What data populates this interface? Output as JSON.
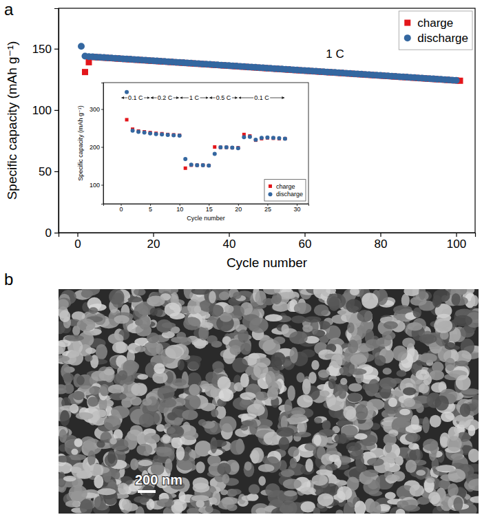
{
  "chart_data": [
    {
      "type": "scatter",
      "panel_label": "a",
      "x_label": "Cycle number",
      "y_label": "Specific capacity (mAh g⁻¹)",
      "x": [
        1,
        2,
        3,
        4,
        5,
        6,
        7,
        8,
        9,
        10,
        11,
        12,
        13,
        14,
        15,
        16,
        17,
        18,
        19,
        20,
        21,
        22,
        23,
        24,
        25,
        26,
        27,
        28,
        29,
        30,
        31,
        32,
        33,
        34,
        35,
        36,
        37,
        38,
        39,
        40,
        41,
        42,
        43,
        44,
        45,
        46,
        47,
        48,
        49,
        50,
        51,
        52,
        53,
        54,
        55,
        56,
        57,
        58,
        59,
        60,
        61,
        62,
        63,
        64,
        65,
        66,
        67,
        68,
        69,
        70,
        71,
        72,
        73,
        74,
        75,
        76,
        77,
        78,
        79,
        80,
        81,
        82,
        83,
        84,
        85,
        86,
        87,
        88,
        89,
        90,
        91,
        92,
        93,
        94,
        95,
        96,
        97,
        98,
        99,
        100,
        101
      ],
      "series": [
        {
          "name": "charge",
          "color": "#e3161b",
          "marker": "square",
          "values": [
            null,
            131,
            139,
            143.3,
            143.1,
            142.9,
            142.7,
            142.5,
            142.3,
            142.1,
            141.9,
            141.7,
            141.5,
            141.3,
            141.1,
            140.9,
            140.7,
            140.5,
            140.3,
            140.1,
            139.9,
            139.7,
            139.5,
            139.3,
            139.1,
            138.9,
            138.7,
            138.5,
            138.3,
            138.1,
            137.9,
            137.7,
            137.5,
            137.3,
            137.1,
            136.9,
            136.7,
            136.5,
            136.3,
            136.1,
            135.9,
            135.7,
            135.5,
            135.3,
            135.1,
            134.9,
            134.7,
            134.5,
            134.3,
            134.1,
            133.9,
            133.7,
            133.5,
            133.3,
            133.1,
            132.9,
            132.7,
            132.5,
            132.3,
            132.1,
            131.9,
            131.7,
            131.5,
            131.3,
            131.1,
            130.9,
            130.7,
            130.5,
            130.3,
            130.1,
            129.9,
            129.7,
            129.5,
            129.3,
            129.1,
            128.9,
            128.7,
            128.5,
            128.3,
            128.1,
            127.9,
            127.7,
            127.5,
            127.3,
            127.1,
            126.9,
            126.7,
            126.5,
            126.3,
            126.1,
            125.9,
            125.7,
            125.5,
            125.3,
            125.1,
            124.9,
            124.7,
            124.5,
            124.3,
            124.1,
            123.9
          ]
        },
        {
          "name": "discharge",
          "color": "#3467a0",
          "marker": "circle",
          "values": [
            152,
            144,
            143.6,
            143.4,
            143.2,
            143.0,
            142.8,
            142.6,
            142.4,
            142.2,
            142.0,
            141.8,
            141.6,
            141.4,
            141.2,
            141.0,
            140.8,
            140.6,
            140.4,
            140.2,
            140.0,
            139.8,
            139.6,
            139.4,
            139.2,
            139.0,
            138.8,
            138.6,
            138.4,
            138.2,
            138.0,
            137.8,
            137.6,
            137.4,
            137.2,
            137.0,
            136.8,
            136.6,
            136.4,
            136.2,
            136.0,
            135.8,
            135.6,
            135.4,
            135.2,
            135.0,
            134.8,
            134.6,
            134.4,
            134.2,
            134.0,
            133.8,
            133.6,
            133.4,
            133.2,
            133.0,
            132.8,
            132.6,
            132.4,
            132.2,
            132.0,
            131.8,
            131.6,
            131.4,
            131.2,
            131.0,
            130.8,
            130.6,
            130.4,
            130.2,
            130.0,
            129.8,
            129.6,
            129.4,
            129.2,
            129.0,
            128.8,
            128.6,
            128.4,
            128.2,
            128.0,
            127.8,
            127.6,
            127.4,
            127.2,
            127.0,
            126.8,
            126.6,
            126.4,
            126.2,
            126.0,
            125.8,
            125.6,
            125.4,
            125.2,
            125.0,
            124.8,
            124.6,
            124.4,
            124.2,
            null
          ]
        }
      ],
      "xlim": [
        -5,
        105
      ],
      "ylim": [
        0,
        183
      ],
      "xticks": [
        0,
        20,
        40,
        60,
        80,
        100
      ],
      "yticks": [
        0,
        50,
        100,
        150
      ],
      "legend": "upper right",
      "annotations": [
        {
          "text": "1 C",
          "x": 68,
          "y": 146
        }
      ]
    },
    {
      "type": "scatter",
      "x_label": "Cycle number",
      "y_label": "Specific capacity (mAh g⁻¹)",
      "x": [
        1,
        2,
        3,
        4,
        5,
        6,
        7,
        8,
        9,
        10,
        11,
        12,
        13,
        14,
        15,
        16,
        17,
        18,
        19,
        20,
        21,
        22,
        23,
        24,
        25,
        26,
        27,
        28
      ],
      "series": [
        {
          "name": "charge",
          "color": "#e3161b",
          "marker": "square",
          "values": [
            272,
            247,
            242,
            240,
            238,
            236,
            235,
            233,
            232,
            231,
            144,
            152,
            152,
            152,
            151,
            200,
            199,
            199,
            198,
            198,
            233,
            229,
            218,
            222,
            224,
            223,
            222,
            222
          ]
        },
        {
          "name": "discharge",
          "color": "#3467a0",
          "marker": "circle",
          "values": [
            345,
            243,
            240,
            238,
            236,
            234,
            233,
            232,
            231,
            230,
            168,
            153,
            152,
            152,
            151,
            182,
            199,
            199,
            198,
            197,
            226,
            227,
            219,
            224,
            225,
            224,
            223,
            222
          ]
        }
      ],
      "xlim": [
        -3,
        32
      ],
      "ylim": [
        50,
        370
      ],
      "xticks": [
        0,
        5,
        10,
        15,
        20,
        25,
        30
      ],
      "yticks": [
        100,
        200,
        300
      ],
      "legend": "lower right",
      "rate_segments": [
        {
          "label": "0.1 C",
          "start": 0,
          "end": 5
        },
        {
          "label": "0.2 C",
          "start": 5,
          "end": 10
        },
        {
          "label": "1 C",
          "start": 10,
          "end": 15
        },
        {
          "label": "0.5 C",
          "start": 15,
          "end": 20
        },
        {
          "label": "0.1 C",
          "start": 20,
          "end": 28
        }
      ]
    }
  ],
  "image": {
    "panel_label": "b",
    "scale_bar": "200 nm"
  }
}
